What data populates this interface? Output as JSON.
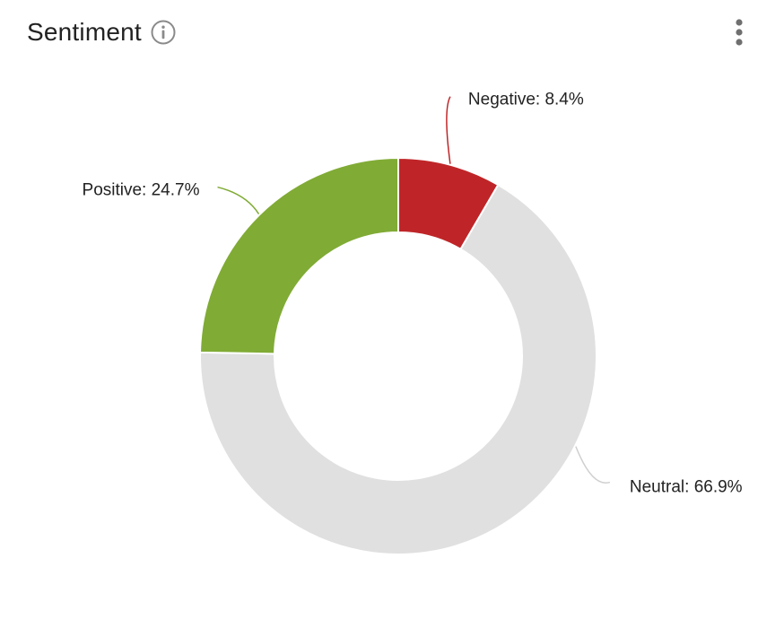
{
  "header": {
    "title": "Sentiment",
    "info_icon": "info-circle-icon",
    "menu_icon": "more-vertical-icon"
  },
  "colors": {
    "negative": "#bf2528",
    "neutral": "#e0e0e0",
    "positive": "#80ab35",
    "text": "#222222",
    "icon": "#8a8a8a"
  },
  "chart_data": {
    "type": "pie",
    "style": "donut",
    "categories": [
      "Negative",
      "Neutral",
      "Positive"
    ],
    "values": [
      8.4,
      66.9,
      24.7
    ],
    "unit": "%",
    "labels": [
      "Negative: 8.4%",
      "Neutral: 66.9%",
      "Positive: 24.7%"
    ],
    "colors": [
      "#bf2528",
      "#e0e0e0",
      "#80ab35"
    ],
    "start": "top",
    "direction": "clockwise",
    "legend": "none"
  }
}
